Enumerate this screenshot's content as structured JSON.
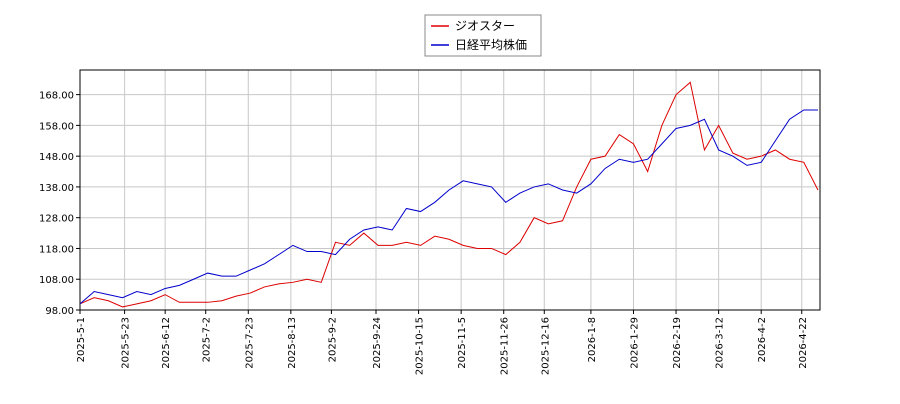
{
  "chart_data": {
    "type": "line",
    "x": [
      "2025-05-01",
      "2025-05-08",
      "2025-05-15",
      "2025-05-22",
      "2025-05-29",
      "2025-06-05",
      "2025-06-12",
      "2025-06-19",
      "2025-06-26",
      "2025-07-03",
      "2025-07-10",
      "2025-07-17",
      "2025-07-24",
      "2025-07-31",
      "2025-08-07",
      "2025-08-14",
      "2025-08-21",
      "2025-08-28",
      "2025-09-04",
      "2025-09-11",
      "2025-09-18",
      "2025-09-25",
      "2025-10-02",
      "2025-10-09",
      "2025-10-16",
      "2025-10-23",
      "2025-10-30",
      "2025-11-06",
      "2025-11-13",
      "2025-11-20",
      "2025-11-27",
      "2025-12-04",
      "2025-12-11",
      "2025-12-18",
      "2025-12-25",
      "2026-01-01",
      "2026-01-08",
      "2026-01-15",
      "2026-01-22",
      "2026-01-29",
      "2026-02-05",
      "2026-02-12",
      "2026-02-19",
      "2026-02-26",
      "2026-03-05",
      "2026-03-12",
      "2026-03-19",
      "2026-03-26",
      "2026-04-02",
      "2026-04-09",
      "2026-04-16",
      "2026-04-23",
      "2026-04-30"
    ],
    "series": [
      {
        "name": "ジオスター",
        "color": "#dd0000",
        "values": [
          100,
          102,
          101,
          99,
          100,
          101,
          103,
          100.5,
          100.5,
          100.5,
          101,
          102.5,
          103.5,
          105.5,
          106.5,
          107,
          108,
          107,
          120,
          119,
          123,
          119,
          119,
          120,
          119,
          122,
          121,
          119,
          118,
          118,
          116,
          120,
          128,
          126,
          127,
          138,
          147,
          148,
          155,
          152,
          143,
          158,
          168,
          172,
          150,
          158,
          149,
          147,
          148,
          150,
          147,
          146,
          137
        ]
      },
      {
        "name": "日経平均株価",
        "color": "#0000cc",
        "values": [
          100,
          104,
          103,
          102,
          104,
          103,
          105,
          106,
          108,
          110,
          109,
          109,
          111,
          113,
          116,
          119,
          117,
          117,
          116,
          121,
          124,
          125,
          124,
          131,
          130,
          133,
          137,
          140,
          139,
          138,
          133,
          136,
          138,
          139,
          137,
          136,
          139,
          144,
          147,
          146,
          147,
          152,
          157,
          158,
          160,
          150,
          148,
          145,
          146,
          153,
          160,
          163,
          163
        ]
      }
    ],
    "xlim": [
      "2025-05-01",
      "2026-05-01"
    ],
    "xticks": [
      {
        "value": "2025-05-01",
        "label": "2025-5-1"
      },
      {
        "value": "2025-05-23",
        "label": "2025-5-23"
      },
      {
        "value": "2025-06-12",
        "label": "2025-6-12"
      },
      {
        "value": "2025-07-02",
        "label": "2025-7-2"
      },
      {
        "value": "2025-07-23",
        "label": "2025-7-23"
      },
      {
        "value": "2025-08-13",
        "label": "2025-8-13"
      },
      {
        "value": "2025-09-02",
        "label": "2025-9-2"
      },
      {
        "value": "2025-09-24",
        "label": "2025-9-24"
      },
      {
        "value": "2025-10-15",
        "label": "2025-10-15"
      },
      {
        "value": "2025-11-05",
        "label": "2025-11-5"
      },
      {
        "value": "2025-11-26",
        "label": "2025-11-26"
      },
      {
        "value": "2025-12-16",
        "label": "2025-12-16"
      },
      {
        "value": "2026-01-08",
        "label": "2026-1-8"
      },
      {
        "value": "2026-01-29",
        "label": "2026-1-29"
      },
      {
        "value": "2026-02-19",
        "label": "2026-2-19"
      },
      {
        "value": "2026-03-12",
        "label": "2026-3-12"
      },
      {
        "value": "2026-04-02",
        "label": "2026-4-2"
      },
      {
        "value": "2026-04-22",
        "label": "2026-4-22"
      }
    ],
    "ylim": [
      98,
      176
    ],
    "yticks": [
      {
        "value": 98,
        "label": "98.00"
      },
      {
        "value": 108,
        "label": "108.00"
      },
      {
        "value": 118,
        "label": "118.00"
      },
      {
        "value": 128,
        "label": "128.00"
      },
      {
        "value": 138,
        "label": "138.00"
      },
      {
        "value": 148,
        "label": "148.00"
      },
      {
        "value": 158,
        "label": "158.00"
      },
      {
        "value": 168,
        "label": "168.00"
      }
    ],
    "grid": true,
    "legend": "top"
  }
}
